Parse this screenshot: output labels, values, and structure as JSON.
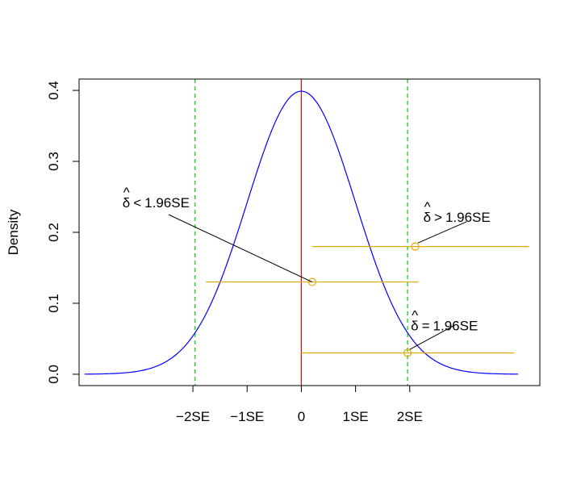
{
  "chart_data": {
    "type": "line",
    "title": "",
    "xlabel": "",
    "ylabel": "Density",
    "xlim": [
      -4.1,
      4.4
    ],
    "ylim": [
      -0.016,
      0.416
    ],
    "yticks": [
      0.0,
      0.1,
      0.2,
      0.3,
      0.4
    ],
    "ytick_labels": [
      "0.0",
      "0.1",
      "0.2",
      "0.3",
      "0.4"
    ],
    "xticks": [
      -2,
      -1,
      0,
      1,
      2
    ],
    "xtick_labels": [
      "−2SE",
      "−1SE",
      "0",
      "1SE",
      "2SE"
    ],
    "series": [
      {
        "kind": "normal-density",
        "mean": 0,
        "sd": 1,
        "x_range": [
          -4,
          4
        ],
        "color": "#0000ff"
      }
    ],
    "vlines": [
      {
        "x": 0,
        "color": "#ff0000",
        "style": "solid"
      },
      {
        "x": -1.96,
        "color": "#00cc00",
        "style": "dashed"
      },
      {
        "x": 1.96,
        "color": "#00cc00",
        "style": "dashed"
      }
    ],
    "intervals": [
      {
        "estimate": 0.2,
        "lower": -1.76,
        "upper": 2.16,
        "y": 0.13,
        "color": "#e6a800"
      },
      {
        "estimate": 2.1,
        "lower": 0.2,
        "upper": 4.2,
        "y": 0.18,
        "color": "#e6a800"
      },
      {
        "estimate": 1.96,
        "lower": 0.0,
        "upper": 3.92,
        "y": 0.03,
        "color": "#e6a800"
      }
    ],
    "annotations": [
      {
        "label_hat": "δ",
        "label_op": "<",
        "label_rest": "1.96SE",
        "text_x": -3.3,
        "text_y": 0.235,
        "arrow_to": [
          0.2,
          0.13
        ],
        "arrow_from": [
          -2.45,
          0.225
        ]
      },
      {
        "label_hat": "δ",
        "label_op": ">",
        "label_rest": "1.96SE",
        "text_x": 2.25,
        "text_y": 0.215,
        "arrow_to": [
          2.15,
          0.185
        ],
        "arrow_from": [
          3.05,
          0.215
        ]
      },
      {
        "label_hat": "δ",
        "label_op": "=",
        "label_rest": "1.96SE",
        "text_x": 2.02,
        "text_y": 0.062,
        "arrow_to": [
          2.0,
          0.035
        ],
        "arrow_from": [
          2.85,
          0.07
        ]
      }
    ]
  }
}
